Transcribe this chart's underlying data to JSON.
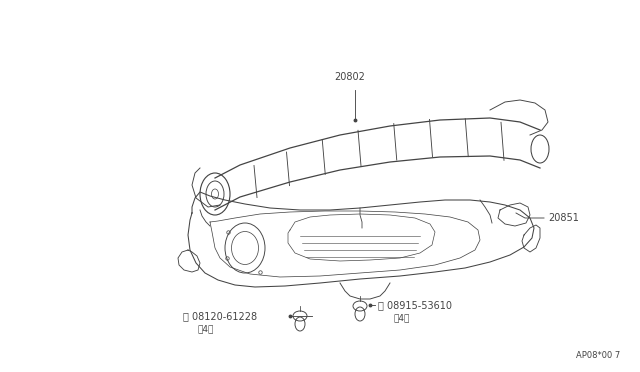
{
  "bg_color": "#ffffff",
  "line_color": "#444444",
  "fig_ref": "AP08*00 7",
  "label_20802": "20802",
  "label_20851": "20851",
  "label_v": "(V) 08915-53610",
  "label_v2": "（4）",
  "label_b": "(B) 08120-61228",
  "label_b2": "（4）",
  "font_size": 7.0,
  "lw": 0.75
}
